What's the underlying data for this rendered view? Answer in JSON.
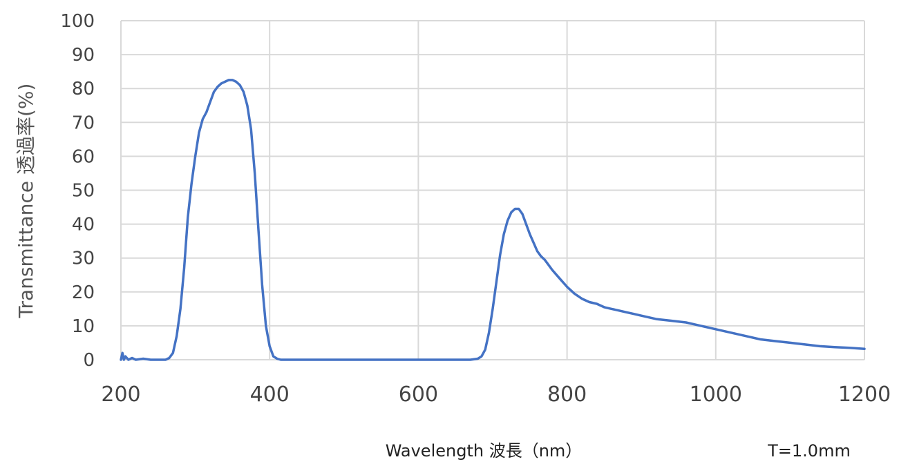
{
  "chart_data": {
    "type": "line",
    "title": "",
    "xlabel": "Wavelength 波長（nm）",
    "ylabel": "Transmittance 透過率(%)",
    "annotation": "T=1.0mm",
    "xlim": [
      200,
      1200
    ],
    "ylim": [
      0,
      100
    ],
    "x_ticks": [
      200,
      400,
      600,
      800,
      1000,
      1200
    ],
    "y_ticks": [
      0,
      10,
      20,
      30,
      40,
      50,
      60,
      70,
      80,
      90,
      100
    ],
    "grid": true,
    "series_color": "#4472c4",
    "series": [
      {
        "points": [
          [
            200,
            0
          ],
          [
            202,
            2
          ],
          [
            204,
            0
          ],
          [
            206,
            1
          ],
          [
            210,
            0
          ],
          [
            215,
            0.5
          ],
          [
            220,
            0
          ],
          [
            230,
            0.3
          ],
          [
            240,
            0
          ],
          [
            260,
            0
          ],
          [
            265,
            0.5
          ],
          [
            270,
            2
          ],
          [
            275,
            7
          ],
          [
            280,
            15
          ],
          [
            285,
            27
          ],
          [
            290,
            42
          ],
          [
            295,
            52
          ],
          [
            300,
            60
          ],
          [
            305,
            67
          ],
          [
            310,
            71
          ],
          [
            315,
            73
          ],
          [
            320,
            76
          ],
          [
            325,
            79
          ],
          [
            330,
            80.5
          ],
          [
            335,
            81.5
          ],
          [
            340,
            82
          ],
          [
            345,
            82.5
          ],
          [
            350,
            82.5
          ],
          [
            355,
            82
          ],
          [
            360,
            81
          ],
          [
            365,
            79
          ],
          [
            370,
            75
          ],
          [
            375,
            68
          ],
          [
            380,
            55
          ],
          [
            385,
            38
          ],
          [
            390,
            22
          ],
          [
            395,
            10
          ],
          [
            400,
            4
          ],
          [
            405,
            1
          ],
          [
            410,
            0.3
          ],
          [
            415,
            0
          ],
          [
            500,
            0
          ],
          [
            600,
            0
          ],
          [
            670,
            0
          ],
          [
            680,
            0.3
          ],
          [
            685,
            1
          ],
          [
            690,
            3
          ],
          [
            695,
            8
          ],
          [
            700,
            15
          ],
          [
            705,
            23
          ],
          [
            710,
            31
          ],
          [
            715,
            37
          ],
          [
            720,
            41
          ],
          [
            725,
            43.5
          ],
          [
            730,
            44.5
          ],
          [
            735,
            44.5
          ],
          [
            740,
            43
          ],
          [
            745,
            40
          ],
          [
            750,
            37
          ],
          [
            755,
            34.5
          ],
          [
            760,
            32
          ],
          [
            765,
            30.5
          ],
          [
            770,
            29.5
          ],
          [
            775,
            28
          ],
          [
            780,
            26.5
          ],
          [
            790,
            24
          ],
          [
            800,
            21.5
          ],
          [
            810,
            19.5
          ],
          [
            820,
            18
          ],
          [
            830,
            17
          ],
          [
            840,
            16.5
          ],
          [
            850,
            15.5
          ],
          [
            860,
            15
          ],
          [
            870,
            14.5
          ],
          [
            880,
            14
          ],
          [
            890,
            13.5
          ],
          [
            900,
            13
          ],
          [
            920,
            12
          ],
          [
            940,
            11.5
          ],
          [
            960,
            11
          ],
          [
            980,
            10
          ],
          [
            1000,
            9
          ],
          [
            1020,
            8
          ],
          [
            1040,
            7
          ],
          [
            1060,
            6
          ],
          [
            1080,
            5.5
          ],
          [
            1100,
            5
          ],
          [
            1120,
            4.5
          ],
          [
            1140,
            4
          ],
          [
            1160,
            3.7
          ],
          [
            1180,
            3.5
          ],
          [
            1200,
            3.2
          ]
        ]
      }
    ]
  }
}
